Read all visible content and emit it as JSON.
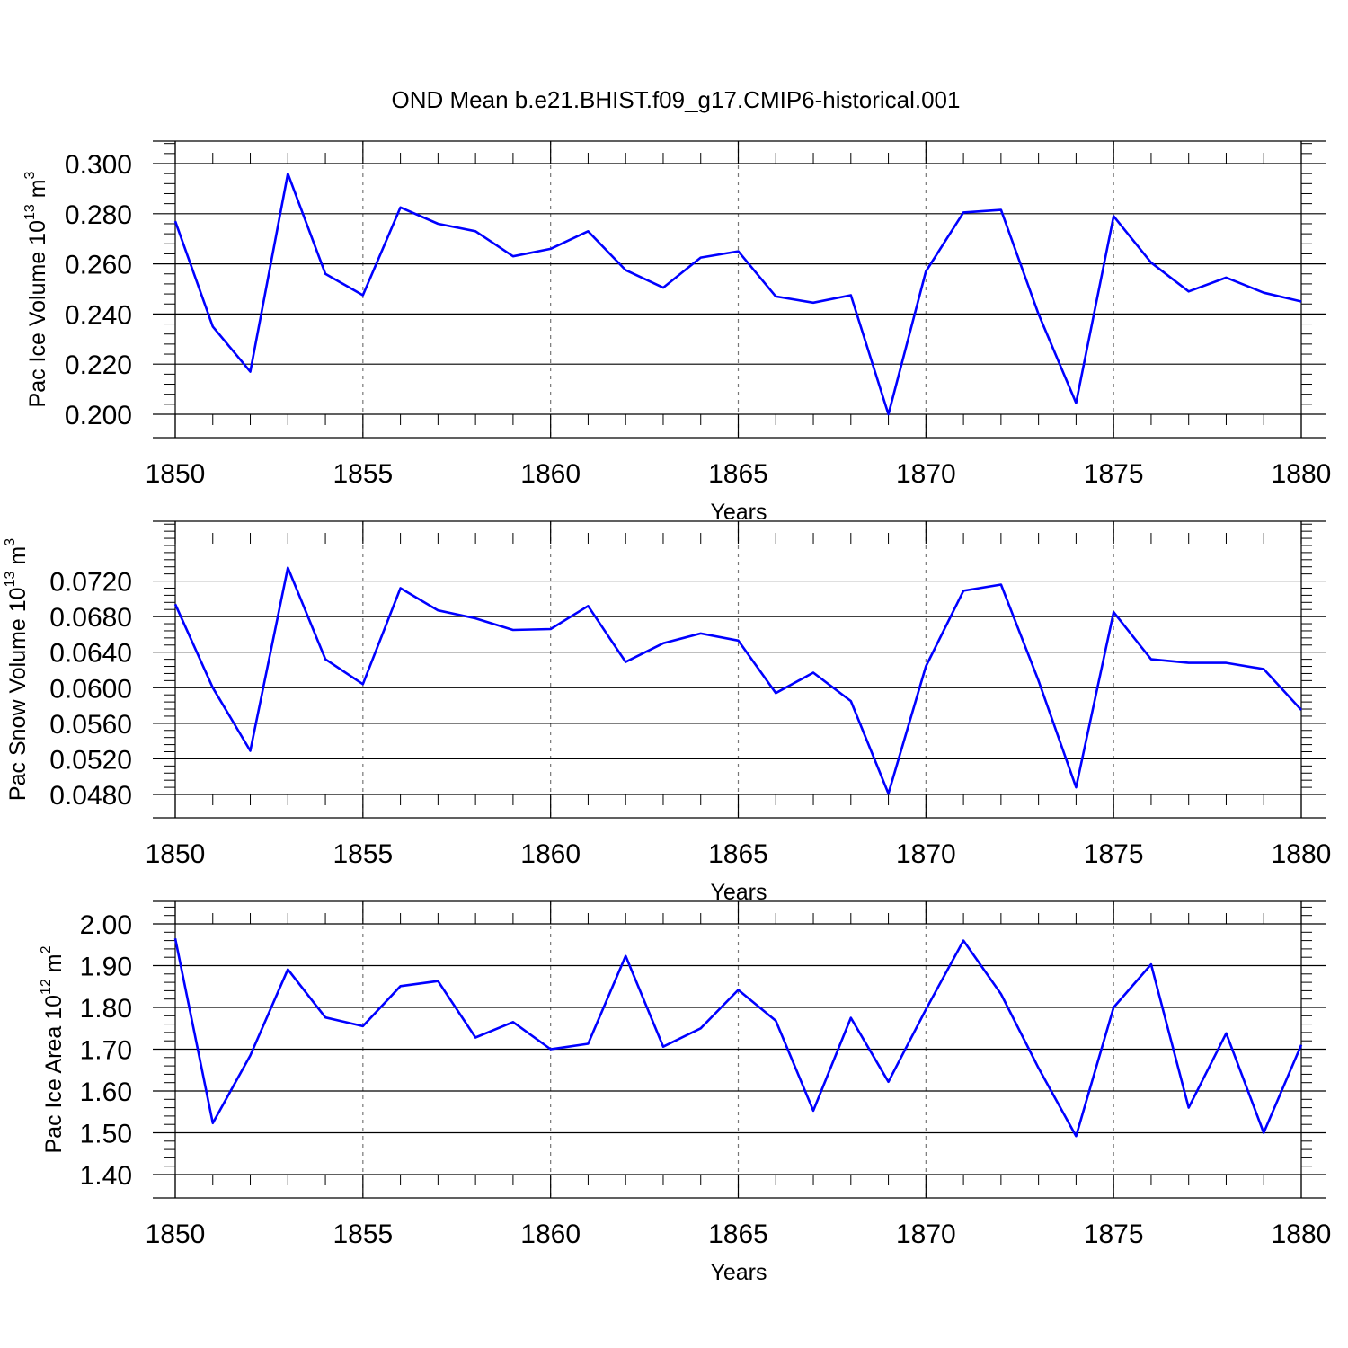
{
  "title": "OND Mean b.e21.BHIST.f09_g17.CMIP6-historical.001",
  "line_color": "#0000ff",
  "chart_data": [
    {
      "type": "line",
      "xlabel": "Years",
      "ylabel": {
        "text": "Pac Ice Volume 10",
        "exp": "13",
        "unit": " m",
        "unit_exp": "3"
      },
      "xlim": [
        1850,
        1880
      ],
      "ylim": [
        0.2,
        0.3
      ],
      "xticks": [
        1850,
        1855,
        1860,
        1865,
        1870,
        1875,
        1880
      ],
      "xtick_labels": [
        "1850",
        "1855",
        "1860",
        "1865",
        "1870",
        "1875",
        "1880"
      ],
      "yticks": [
        0.2,
        0.22,
        0.24,
        0.26,
        0.28,
        0.3
      ],
      "ytick_labels": [
        "0.200",
        "0.220",
        "0.240",
        "0.260",
        "0.280",
        "0.300"
      ],
      "x": [
        1850,
        1851,
        1852,
        1853,
        1854,
        1855,
        1856,
        1857,
        1858,
        1859,
        1860,
        1861,
        1862,
        1863,
        1864,
        1865,
        1866,
        1867,
        1868,
        1869,
        1870,
        1871,
        1872,
        1873,
        1874,
        1875,
        1876,
        1877,
        1878,
        1879,
        1880
      ],
      "y": [
        0.277,
        0.235,
        0.217,
        0.296,
        0.256,
        0.2475,
        0.2825,
        0.276,
        0.273,
        0.263,
        0.266,
        0.273,
        0.2575,
        0.2505,
        0.2625,
        0.265,
        0.247,
        0.2445,
        0.2475,
        0.2,
        0.257,
        0.2805,
        0.2815,
        0.24,
        0.2045,
        0.279,
        0.2605,
        0.249,
        0.2545,
        0.2485,
        0.245
      ]
    },
    {
      "type": "line",
      "xlabel": "Years",
      "ylabel": {
        "text": "Pac Snow Volume 10",
        "exp": "13",
        "unit": " m",
        "unit_exp": "3"
      },
      "xlim": [
        1850,
        1880
      ],
      "ylim": [
        0.048,
        0.0762
      ],
      "xticks": [
        1850,
        1855,
        1860,
        1865,
        1870,
        1875,
        1880
      ],
      "xtick_labels": [
        "1850",
        "1855",
        "1860",
        "1865",
        "1870",
        "1875",
        "1880"
      ],
      "yticks": [
        0.048,
        0.052,
        0.056,
        0.06,
        0.064,
        0.068,
        0.072
      ],
      "ytick_labels": [
        "0.0480",
        "0.0520",
        "0.0560",
        "0.0600",
        "0.0640",
        "0.0680",
        "0.0720"
      ],
      "x": [
        1850,
        1851,
        1852,
        1853,
        1854,
        1855,
        1856,
        1857,
        1858,
        1859,
        1860,
        1861,
        1862,
        1863,
        1864,
        1865,
        1866,
        1867,
        1868,
        1869,
        1870,
        1871,
        1872,
        1873,
        1874,
        1875,
        1876,
        1877,
        1878,
        1879,
        1880
      ],
      "y": [
        0.0694,
        0.06,
        0.0529,
        0.0735,
        0.0632,
        0.0604,
        0.0712,
        0.0687,
        0.0678,
        0.0665,
        0.0666,
        0.0692,
        0.0629,
        0.065,
        0.0661,
        0.0653,
        0.0594,
        0.0617,
        0.0585,
        0.0481,
        0.0624,
        0.0709,
        0.0716,
        0.0608,
        0.0488,
        0.0685,
        0.0632,
        0.0628,
        0.0628,
        0.0621,
        0.0575
      ]
    },
    {
      "type": "line",
      "xlabel": "Years",
      "ylabel": {
        "text": "Pac Ice Area 10",
        "exp": "12",
        "unit": " m",
        "unit_exp": "2"
      },
      "xlim": [
        1850,
        1880
      ],
      "ylim": [
        1.4,
        2.0
      ],
      "xticks": [
        1850,
        1855,
        1860,
        1865,
        1870,
        1875,
        1880
      ],
      "xtick_labels": [
        "1850",
        "1855",
        "1860",
        "1865",
        "1870",
        "1875",
        "1880"
      ],
      "yticks": [
        1.4,
        1.5,
        1.6,
        1.7,
        1.8,
        1.9,
        2.0
      ],
      "ytick_labels": [
        "1.40",
        "1.50",
        "1.60",
        "1.70",
        "1.80",
        "1.90",
        "2.00"
      ],
      "x": [
        1850,
        1851,
        1852,
        1853,
        1854,
        1855,
        1856,
        1857,
        1858,
        1859,
        1860,
        1861,
        1862,
        1863,
        1864,
        1865,
        1866,
        1867,
        1868,
        1869,
        1870,
        1871,
        1872,
        1873,
        1874,
        1875,
        1876,
        1877,
        1878,
        1879,
        1880
      ],
      "y": [
        1.965,
        1.523,
        1.685,
        1.891,
        1.776,
        1.755,
        1.851,
        1.863,
        1.728,
        1.765,
        1.7,
        1.713,
        1.923,
        1.706,
        1.75,
        1.842,
        1.768,
        1.553,
        1.775,
        1.622,
        1.795,
        1.96,
        1.832,
        1.655,
        1.492,
        1.8,
        1.903,
        1.56,
        1.738,
        1.5,
        1.71
      ]
    }
  ]
}
